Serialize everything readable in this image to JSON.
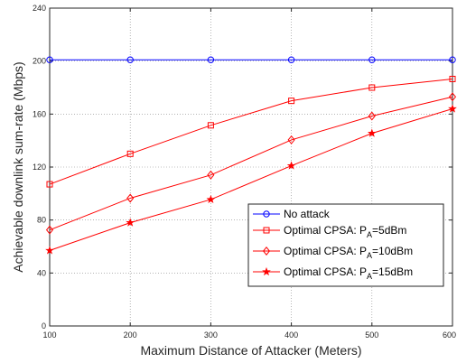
{
  "chart_data": {
    "type": "line",
    "xlabel": "Maximum Distance of Attacker (Meters)",
    "ylabel": "Achievable downlink  sum-rate (Mbps)",
    "x": [
      100,
      200,
      300,
      400,
      500,
      600
    ],
    "xlim": [
      100,
      600
    ],
    "ylim": [
      0,
      240
    ],
    "xticks": [
      "100",
      "200",
      "300",
      "400",
      "500",
      "600"
    ],
    "yticks": [
      "0",
      "40",
      "80",
      "120",
      "160",
      "200",
      "240"
    ],
    "grid": true,
    "legend_position": "bottom-right",
    "series": [
      {
        "name": "No attack",
        "color": "#0000ff",
        "marker": "circle",
        "values": [
          201,
          201,
          201,
          201,
          201,
          201
        ]
      },
      {
        "name": "Optimal CPSA: P_A=5dBm",
        "legend": {
          "main": "Optimal CPSA: P",
          "sub": "A",
          "rest": "=5dBm"
        },
        "color": "#ff0000",
        "marker": "square",
        "values": [
          107,
          130,
          151.5,
          170,
          180,
          186.5
        ]
      },
      {
        "name": "Optimal CPSA: P_A=10dBm",
        "legend": {
          "main": "Optimal CPSA: P",
          "sub": "A",
          "rest": "=10dBm"
        },
        "color": "#ff0000",
        "marker": "diamond",
        "values": [
          72.5,
          96.5,
          114,
          140.5,
          158.5,
          173
        ]
      },
      {
        "name": "Optimal CPSA: P_A=15dBm",
        "legend": {
          "main": "Optimal CPSA: P",
          "sub": "A",
          "rest": "=15dBm"
        },
        "color": "#ff0000",
        "marker": "star",
        "values": [
          57,
          78,
          95.5,
          121,
          145.5,
          164
        ]
      }
    ]
  }
}
